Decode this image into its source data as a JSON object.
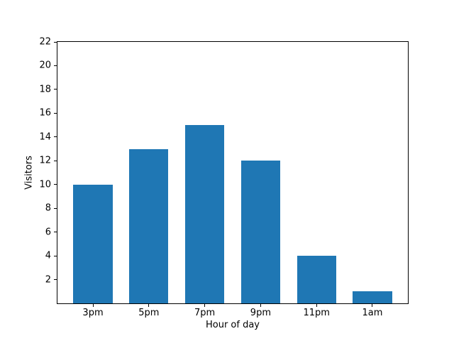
{
  "figure": {
    "background": "#ffffff"
  },
  "chart_data": {
    "type": "bar",
    "title": "",
    "categories": [
      "3pm",
      "5pm",
      "7pm",
      "9pm",
      "11pm",
      "1am"
    ],
    "values": [
      10,
      13,
      15,
      12,
      4,
      1
    ],
    "xlabel": "Hour of day",
    "ylabel": "Visitors",
    "ylim": [
      0,
      22
    ],
    "yticks": [
      2,
      4,
      6,
      8,
      10,
      12,
      14,
      16,
      18,
      20,
      22
    ],
    "bar_color": "#1f77b4",
    "axis_color": "#000000",
    "bar_width_fraction": 0.7,
    "grid": false,
    "legend": false
  }
}
